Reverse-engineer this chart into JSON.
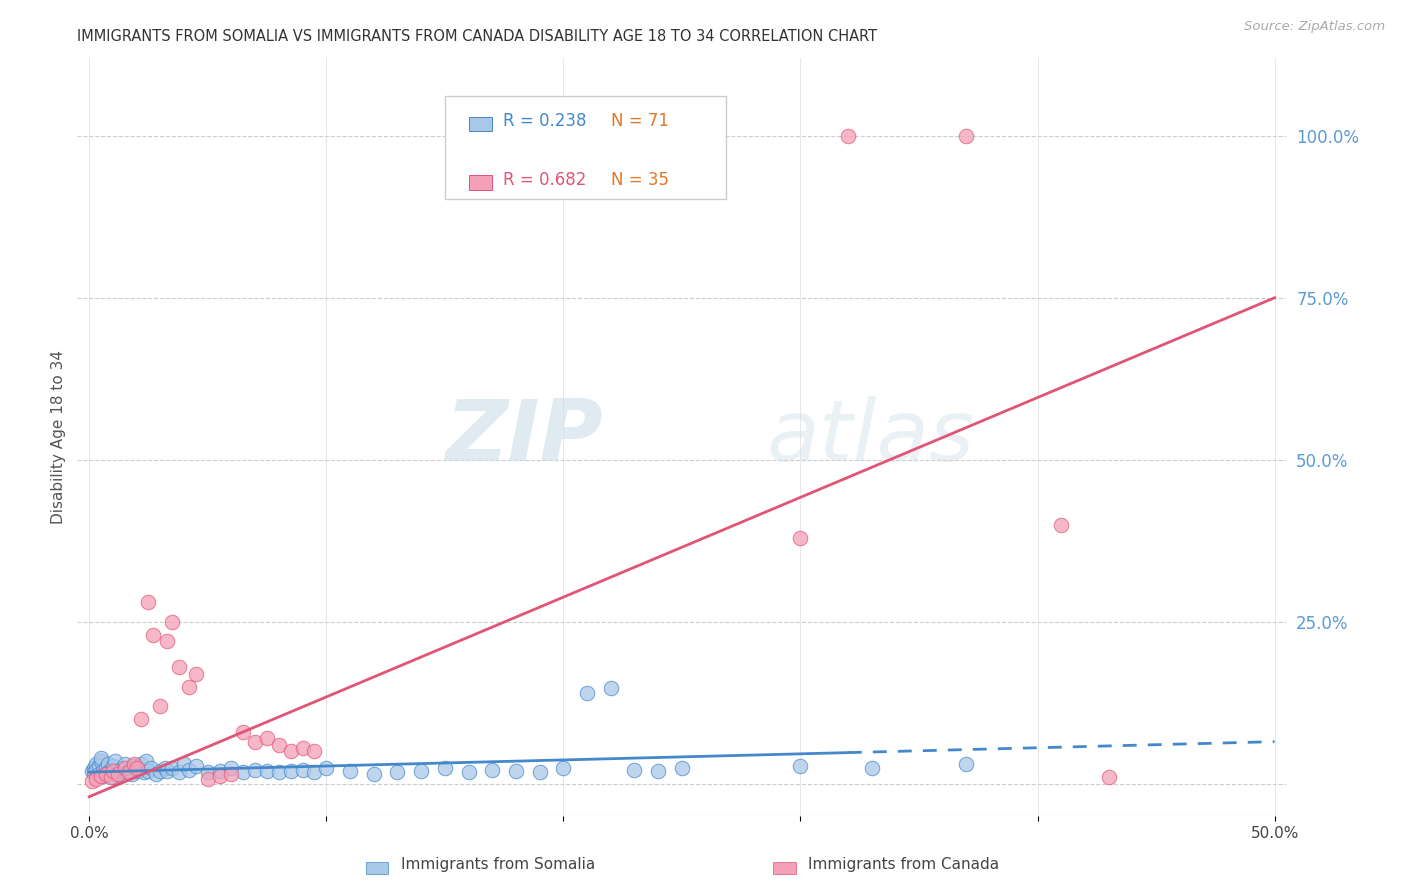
{
  "title": "IMMIGRANTS FROM SOMALIA VS IMMIGRANTS FROM CANADA DISABILITY AGE 18 TO 34 CORRELATION CHART",
  "source": "Source: ZipAtlas.com",
  "ylabel": "Disability Age 18 to 34",
  "xlabel_somalia": "Immigrants from Somalia",
  "xlabel_canada": "Immigrants from Canada",
  "xlim": [
    0.0,
    0.5
  ],
  "ylim": [
    -0.02,
    1.1
  ],
  "legend_R_somalia": "R = 0.238",
  "legend_N_somalia": "N = 71",
  "legend_R_canada": "R = 0.682",
  "legend_N_canada": "N = 35",
  "color_somalia": "#a8c8e8",
  "color_canada": "#f4a0b8",
  "color_trendline_somalia": "#4488cc",
  "color_trendline_canada": "#e05575",
  "color_right_axis": "#5b9bd5",
  "background_color": "#ffffff",
  "watermark_ZIP": "ZIP",
  "watermark_atlas": "atlas",
  "somalia_x": [
    0.001,
    0.002,
    0.002,
    0.003,
    0.003,
    0.004,
    0.004,
    0.005,
    0.005,
    0.006,
    0.006,
    0.007,
    0.008,
    0.008,
    0.009,
    0.01,
    0.01,
    0.011,
    0.012,
    0.013,
    0.014,
    0.015,
    0.016,
    0.017,
    0.018,
    0.019,
    0.02,
    0.021,
    0.022,
    0.023,
    0.024,
    0.025,
    0.026,
    0.028,
    0.03,
    0.032,
    0.033,
    0.035,
    0.038,
    0.04,
    0.042,
    0.045,
    0.05,
    0.055,
    0.06,
    0.065,
    0.07,
    0.075,
    0.08,
    0.085,
    0.09,
    0.095,
    0.1,
    0.11,
    0.12,
    0.13,
    0.14,
    0.15,
    0.16,
    0.17,
    0.18,
    0.19,
    0.2,
    0.21,
    0.22,
    0.23,
    0.24,
    0.25,
    0.3,
    0.33,
    0.37
  ],
  "somalia_y": [
    0.02,
    0.025,
    0.018,
    0.03,
    0.022,
    0.028,
    0.015,
    0.035,
    0.04,
    0.012,
    0.02,
    0.025,
    0.03,
    0.018,
    0.022,
    0.01,
    0.028,
    0.035,
    0.015,
    0.02,
    0.025,
    0.03,
    0.018,
    0.022,
    0.015,
    0.028,
    0.02,
    0.025,
    0.03,
    0.018,
    0.035,
    0.02,
    0.025,
    0.015,
    0.02,
    0.025,
    0.02,
    0.025,
    0.018,
    0.03,
    0.022,
    0.028,
    0.018,
    0.02,
    0.025,
    0.018,
    0.022,
    0.02,
    0.018,
    0.02,
    0.022,
    0.018,
    0.025,
    0.02,
    0.015,
    0.018,
    0.02,
    0.025,
    0.018,
    0.022,
    0.02,
    0.018,
    0.025,
    0.14,
    0.148,
    0.022,
    0.02,
    0.025,
    0.028,
    0.025,
    0.03
  ],
  "canada_x": [
    0.001,
    0.003,
    0.005,
    0.007,
    0.009,
    0.01,
    0.012,
    0.015,
    0.017,
    0.019,
    0.02,
    0.022,
    0.025,
    0.027,
    0.03,
    0.033,
    0.035,
    0.038,
    0.042,
    0.045,
    0.05,
    0.055,
    0.06,
    0.065,
    0.07,
    0.075,
    0.08,
    0.085,
    0.09,
    0.095,
    0.3,
    0.32,
    0.37,
    0.41,
    0.43
  ],
  "canada_y": [
    0.005,
    0.008,
    0.012,
    0.015,
    0.01,
    0.02,
    0.015,
    0.025,
    0.018,
    0.03,
    0.025,
    0.1,
    0.28,
    0.23,
    0.12,
    0.22,
    0.25,
    0.18,
    0.15,
    0.17,
    0.008,
    0.012,
    0.015,
    0.08,
    0.065,
    0.07,
    0.06,
    0.05,
    0.055,
    0.05,
    0.38,
    1.0,
    1.0,
    0.4,
    0.01
  ],
  "trendline_somalia_x0": 0.0,
  "trendline_somalia_x1_solid": 0.32,
  "trendline_somalia_x1_dashed": 0.5,
  "trendline_somalia_y0": 0.018,
  "trendline_somalia_y1": 0.065,
  "trendline_canada_x0": 0.0,
  "trendline_canada_x1": 0.5,
  "trendline_canada_y0": -0.02,
  "trendline_canada_y1": 0.75
}
